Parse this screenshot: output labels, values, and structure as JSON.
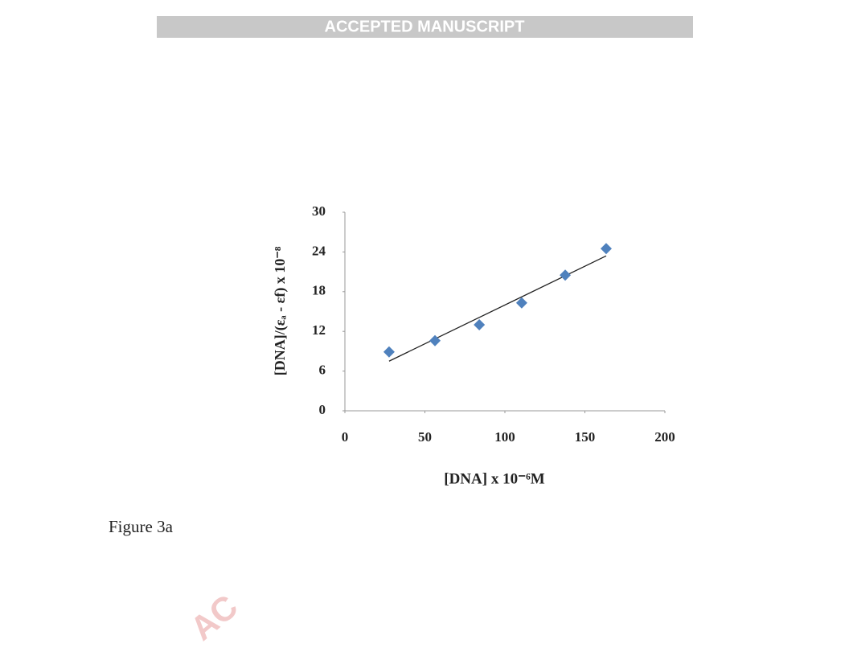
{
  "header": {
    "banner": "ACCEPTED MANUSCRIPT"
  },
  "chart_data": {
    "type": "scatter",
    "xlabel": "[DNA] x 10⁻⁶M",
    "ylabel": "[DNA]/(εₐ - εf) x 10⁻⁸",
    "x": [
      27.6,
      56.3,
      84,
      110.5,
      137.7,
      163.3
    ],
    "values": [
      8.9,
      10.6,
      13,
      16.3,
      20.5,
      24.5
    ],
    "color": "#4f81bd",
    "trendline": {
      "x": [
        27.6,
        163.3
      ],
      "y": [
        7.5,
        23.4
      ]
    },
    "xlim": [
      0,
      200
    ],
    "xticks": [
      0,
      50,
      100,
      150,
      200
    ],
    "ylim": [
      0,
      30
    ],
    "yticks": [
      0,
      6,
      12,
      18,
      24,
      30
    ]
  },
  "caption": "Figure 3a",
  "watermark": "AC"
}
